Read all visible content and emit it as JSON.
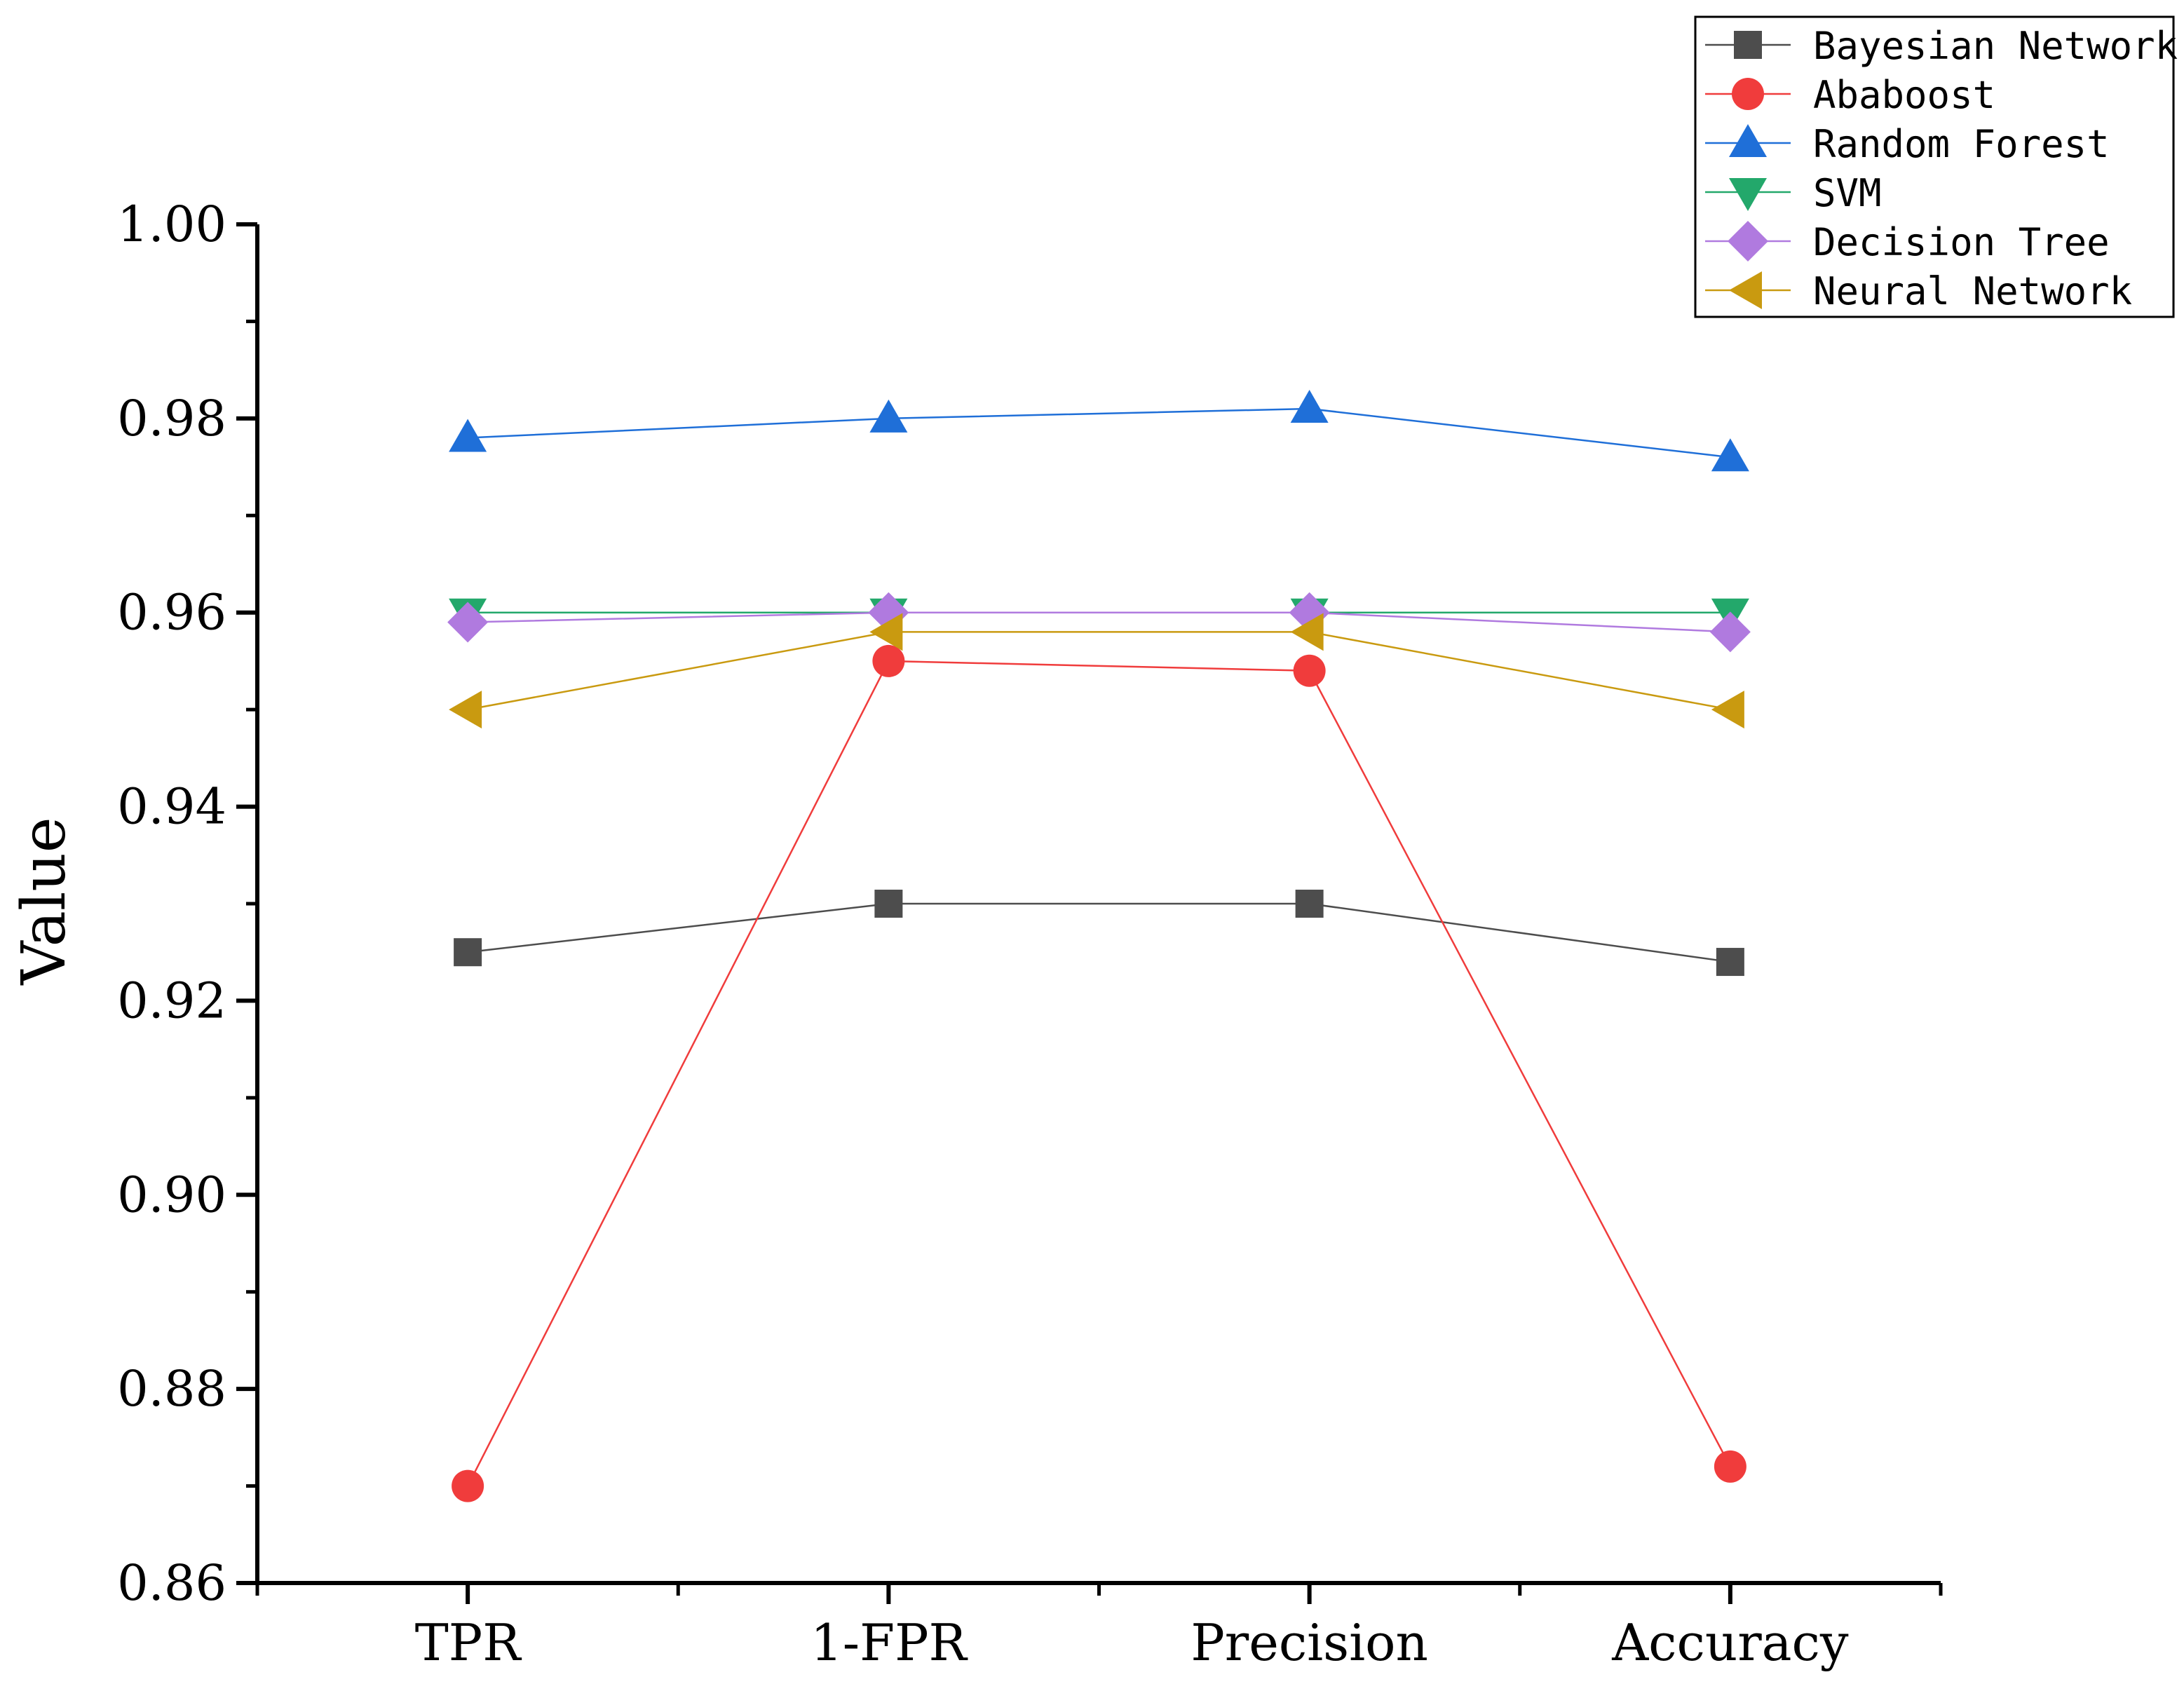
{
  "chart_data": {
    "type": "line",
    "title": "",
    "xlabel": "",
    "ylabel": "Value",
    "categories": [
      "TPR",
      "1-FPR",
      "Precision",
      "Accuracy"
    ],
    "ylim": [
      0.86,
      1.0
    ],
    "yticks": [
      0.86,
      0.88,
      0.9,
      0.92,
      0.94,
      0.96,
      0.98,
      1.0
    ],
    "ytick_labels": [
      "0.86",
      "0.88",
      "0.90",
      "0.92",
      "0.94",
      "0.96",
      "0.98",
      "1.00"
    ],
    "grid": false,
    "legend_position": "top-right",
    "series": [
      {
        "name": "Bayesian Network",
        "marker": "square",
        "color": "#4d4d4d",
        "values": [
          0.925,
          0.93,
          0.93,
          0.924
        ]
      },
      {
        "name": "Ababoost",
        "marker": "circle",
        "color": "#f03c3c",
        "values": [
          0.87,
          0.955,
          0.954,
          0.872
        ]
      },
      {
        "name": "Random Forest",
        "marker": "triangle-up",
        "color": "#1f6fd8",
        "values": [
          0.978,
          0.98,
          0.981,
          0.976
        ]
      },
      {
        "name": "SVM",
        "marker": "triangle-down",
        "color": "#23a86b",
        "values": [
          0.96,
          0.96,
          0.96,
          0.96
        ]
      },
      {
        "name": "Decision Tree",
        "marker": "diamond",
        "color": "#b07adf",
        "values": [
          0.959,
          0.96,
          0.96,
          0.958
        ]
      },
      {
        "name": "Neural Network",
        "marker": "triangle-left",
        "color": "#c99a10",
        "values": [
          0.95,
          0.958,
          0.958,
          0.95
        ]
      }
    ]
  }
}
